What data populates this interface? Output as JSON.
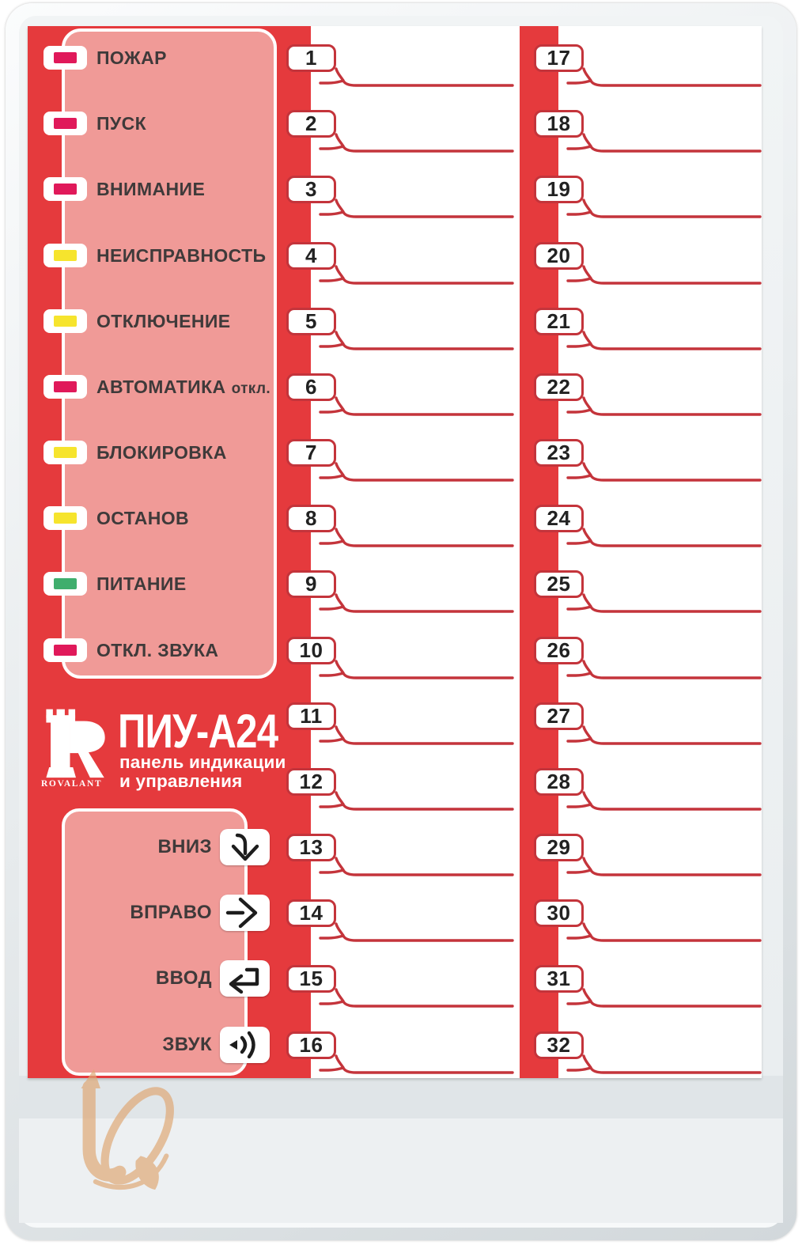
{
  "panel": {
    "title": "ПИУ-А24",
    "subtitle_line1": "панель индикации",
    "subtitle_line2": "и управления",
    "brand": "ROVALANT",
    "brand_letter": "R"
  },
  "indicators": [
    {
      "label": "ПОЖАР",
      "color": "red"
    },
    {
      "label": "ПУСК",
      "color": "red"
    },
    {
      "label": "ВНИМАНИЕ",
      "color": "red"
    },
    {
      "label": "НЕИСПРАВНОСТЬ",
      "color": "yellow"
    },
    {
      "label": "ОТКЛЮЧЕНИЕ",
      "color": "yellow"
    },
    {
      "label": "АВТОМАТИКА",
      "suffix": "откл.",
      "color": "red"
    },
    {
      "label": "БЛОКИРОВКА",
      "color": "yellow"
    },
    {
      "label": "ОСТАНОВ",
      "color": "yellow"
    },
    {
      "label": "ПИТАНИЕ",
      "color": "green"
    },
    {
      "label": "ОТКЛ. ЗВУКА",
      "color": "red"
    }
  ],
  "buttons": [
    {
      "label": "ВНИЗ",
      "icon": "arrow-down"
    },
    {
      "label": "ВПРАВО",
      "icon": "arrow-right"
    },
    {
      "label": "ВВОД",
      "icon": "enter-arrow"
    },
    {
      "label": "ЗВУК",
      "icon": "sound-waves"
    }
  ],
  "zones": {
    "column1": [
      "1",
      "2",
      "3",
      "4",
      "5",
      "6",
      "7",
      "8",
      "9",
      "10",
      "11",
      "12",
      "13",
      "14",
      "15",
      "16"
    ],
    "column2": [
      "17",
      "18",
      "19",
      "20",
      "21",
      "22",
      "23",
      "24",
      "25",
      "26",
      "27",
      "28",
      "29",
      "30",
      "31",
      "32"
    ]
  },
  "colors": {
    "face_red": "#e53a3d",
    "line_red": "#c4343b",
    "pink": "#f09a97",
    "led_red": "#e0195a",
    "led_yellow": "#f6e42d",
    "led_green": "#3fae6d",
    "label_ink": "#3f3a3a",
    "number_ink": "#222222",
    "watermark_tan": "#dfa977"
  }
}
